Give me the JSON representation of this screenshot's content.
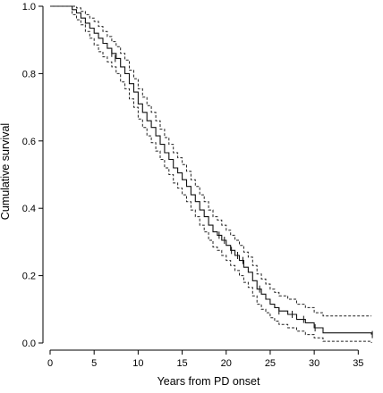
{
  "chart_data": {
    "type": "line",
    "title": "",
    "xlabel": "Years from PD onset",
    "ylabel": "Cumulative survival",
    "xlim": [
      0,
      37
    ],
    "ylim": [
      0,
      1.0
    ],
    "xticks": [
      0,
      5,
      10,
      15,
      20,
      25,
      30,
      35
    ],
    "yticks": [
      0.0,
      0.2,
      0.4,
      0.6,
      0.8,
      1.0
    ],
    "xtick_labels": [
      "0",
      "5",
      "10",
      "15",
      "20",
      "25",
      "30",
      "35"
    ],
    "ytick_labels": [
      "0.0",
      "0.2",
      "0.4",
      "0.6",
      "0.8",
      "1.0"
    ],
    "grid": false,
    "legend": "none",
    "series": [
      {
        "role": "estimate",
        "style": "solid",
        "x": [
          0,
          2.5,
          3.0,
          3.5,
          4.0,
          4.5,
          5.0,
          5.5,
          6.0,
          6.5,
          7.0,
          7.5,
          8.0,
          8.5,
          9.0,
          9.5,
          10.0,
          10.5,
          11.0,
          11.5,
          12.0,
          12.5,
          13.0,
          13.5,
          14.0,
          14.5,
          15.0,
          15.5,
          16.0,
          16.5,
          17.0,
          17.5,
          18.0,
          18.5,
          19.0,
          19.5,
          20.0,
          20.5,
          21.0,
          21.5,
          22.0,
          22.5,
          23.0,
          23.5,
          24.0,
          24.5,
          25.0,
          25.5,
          26.0,
          27.0,
          28.0,
          29.0,
          30.0,
          31.0,
          36.5
        ],
        "y": [
          1.0,
          0.99,
          0.98,
          0.965,
          0.95,
          0.935,
          0.92,
          0.905,
          0.89,
          0.875,
          0.86,
          0.845,
          0.82,
          0.8,
          0.77,
          0.745,
          0.71,
          0.685,
          0.66,
          0.64,
          0.615,
          0.59,
          0.565,
          0.545,
          0.52,
          0.505,
          0.485,
          0.465,
          0.44,
          0.42,
          0.395,
          0.375,
          0.35,
          0.33,
          0.32,
          0.305,
          0.29,
          0.275,
          0.26,
          0.245,
          0.225,
          0.21,
          0.185,
          0.16,
          0.145,
          0.13,
          0.115,
          0.105,
          0.095,
          0.085,
          0.07,
          0.06,
          0.045,
          0.03,
          0.025
        ]
      },
      {
        "role": "upper confidence bound",
        "style": "dashed",
        "x": [
          0,
          2.5,
          3.0,
          3.5,
          4.0,
          4.5,
          5.0,
          5.5,
          6.0,
          6.5,
          7.0,
          7.5,
          8.0,
          8.5,
          9.0,
          9.5,
          10.0,
          10.5,
          11.0,
          11.5,
          12.0,
          12.5,
          13.0,
          13.5,
          14.0,
          14.5,
          15.0,
          15.5,
          16.0,
          16.5,
          17.0,
          17.5,
          18.0,
          18.5,
          19.0,
          19.5,
          20.0,
          20.5,
          21.0,
          21.5,
          22.0,
          22.5,
          23.0,
          23.5,
          24.0,
          24.5,
          25.0,
          25.5,
          26.0,
          27.0,
          28.0,
          29.0,
          30.0,
          31.0,
          36.5
        ],
        "y": [
          1.0,
          1.0,
          0.995,
          0.985,
          0.975,
          0.965,
          0.955,
          0.94,
          0.925,
          0.91,
          0.895,
          0.88,
          0.86,
          0.84,
          0.81,
          0.785,
          0.755,
          0.73,
          0.705,
          0.685,
          0.66,
          0.635,
          0.61,
          0.59,
          0.565,
          0.55,
          0.53,
          0.51,
          0.485,
          0.465,
          0.44,
          0.42,
          0.395,
          0.375,
          0.365,
          0.35,
          0.335,
          0.32,
          0.305,
          0.29,
          0.27,
          0.255,
          0.23,
          0.205,
          0.19,
          0.175,
          0.16,
          0.15,
          0.14,
          0.13,
          0.115,
          0.105,
          0.09,
          0.08,
          0.08
        ]
      },
      {
        "role": "lower confidence bound",
        "style": "dashed",
        "x": [
          0,
          2.5,
          3.0,
          3.5,
          4.0,
          4.5,
          5.0,
          5.5,
          6.0,
          6.5,
          7.0,
          7.5,
          8.0,
          8.5,
          9.0,
          9.5,
          10.0,
          10.5,
          11.0,
          11.5,
          12.0,
          12.5,
          13.0,
          13.5,
          14.0,
          14.5,
          15.0,
          15.5,
          16.0,
          16.5,
          17.0,
          17.5,
          18.0,
          18.5,
          19.0,
          19.5,
          20.0,
          20.5,
          21.0,
          21.5,
          22.0,
          22.5,
          23.0,
          23.5,
          24.0,
          24.5,
          25.0,
          25.5,
          26.0,
          27.0,
          28.0,
          29.0,
          30.0,
          31.0,
          36.5
        ],
        "y": [
          1.0,
          0.975,
          0.96,
          0.945,
          0.925,
          0.905,
          0.885,
          0.865,
          0.85,
          0.835,
          0.82,
          0.8,
          0.775,
          0.755,
          0.725,
          0.7,
          0.665,
          0.64,
          0.615,
          0.595,
          0.57,
          0.545,
          0.52,
          0.5,
          0.475,
          0.46,
          0.44,
          0.42,
          0.395,
          0.375,
          0.35,
          0.33,
          0.305,
          0.285,
          0.275,
          0.26,
          0.245,
          0.23,
          0.215,
          0.2,
          0.18,
          0.165,
          0.14,
          0.115,
          0.1,
          0.09,
          0.075,
          0.065,
          0.055,
          0.045,
          0.035,
          0.025,
          0.015,
          0.005,
          0.0
        ]
      }
    ],
    "censored": {
      "x": [
        7.0,
        7.4,
        19.2,
        19.8,
        20.6,
        21.3,
        21.9,
        23.8,
        26.0,
        27.5,
        28.8,
        30.1,
        36.6
      ],
      "y": [
        0.86,
        0.845,
        0.32,
        0.305,
        0.275,
        0.26,
        0.245,
        0.16,
        0.095,
        0.085,
        0.07,
        0.045,
        0.025
      ]
    }
  }
}
